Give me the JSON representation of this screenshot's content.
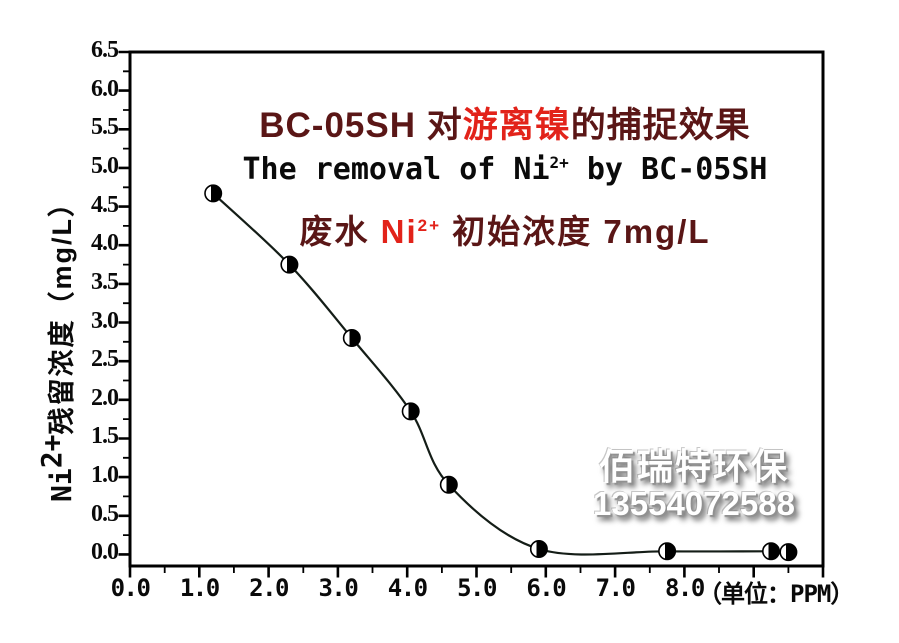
{
  "title": {
    "line1": {
      "prefix": "BC-05SH 对",
      "highlight": "游离镍",
      "suffix": "的捕捉效果"
    },
    "line2": {
      "prefix": "The removal of Ni",
      "sup": "2+",
      "suffix": " by BC-05SH"
    },
    "line3": {
      "prefix": "废水 ",
      "nickel": "Ni",
      "nickel_sup": "2+",
      "suffix": " 初始浓度 7mg/L"
    }
  },
  "y_axis": {
    "title_base": "Ni",
    "title_sup": "2+",
    "title_rest": "残留浓度（mg/L）"
  },
  "x_axis": {
    "unit_label": "（单位：PPM）"
  },
  "watermark": {
    "company": "佰瑞特环保",
    "phone": "13554072588"
  },
  "colors": {
    "title_dark": "#5a1616",
    "title_red": "#e2231a",
    "axis": "#000000",
    "curve": "#141d17",
    "marker_fill": "#000000",
    "watermark_text": "#ffffff"
  },
  "chart_data": {
    "type": "line",
    "title": "BC-05SH 对游离镍的捕捉效果 — The removal of Ni2+ by BC-05SH",
    "subtitle": "废水 Ni2+ 初始浓度 7mg/L",
    "xlabel": "（单位：PPM）",
    "ylabel": "Ni2+残留浓度（mg/L）",
    "x": [
      1.2,
      2.3,
      3.2,
      4.05,
      4.6,
      5.9,
      7.75,
      9.25,
      9.5
    ],
    "y": [
      4.67,
      3.75,
      2.8,
      1.85,
      0.9,
      0.07,
      0.04,
      0.04,
      0.03
    ],
    "xlim": [
      0,
      10
    ],
    "ylim": [
      -0.15,
      6.5
    ],
    "x_major_step": 1.0,
    "x_minor_step": 0.5,
    "y_major_step": 0.5,
    "y_minor_step": 0.25,
    "x_tick_labels": [
      "0.0",
      "1.0",
      "2.0",
      "3.0",
      "4.0",
      "5.0",
      "6.0",
      "7.0",
      "8.0"
    ],
    "y_tick_labels": [
      "0.0",
      "0.5",
      "1.0",
      "1.5",
      "2.0",
      "2.5",
      "3.0",
      "3.5",
      "4.0",
      "4.5",
      "5.0",
      "5.5",
      "6.0",
      "6.5"
    ],
    "grid": false,
    "legend": null,
    "marker": "half-filled-circle"
  }
}
